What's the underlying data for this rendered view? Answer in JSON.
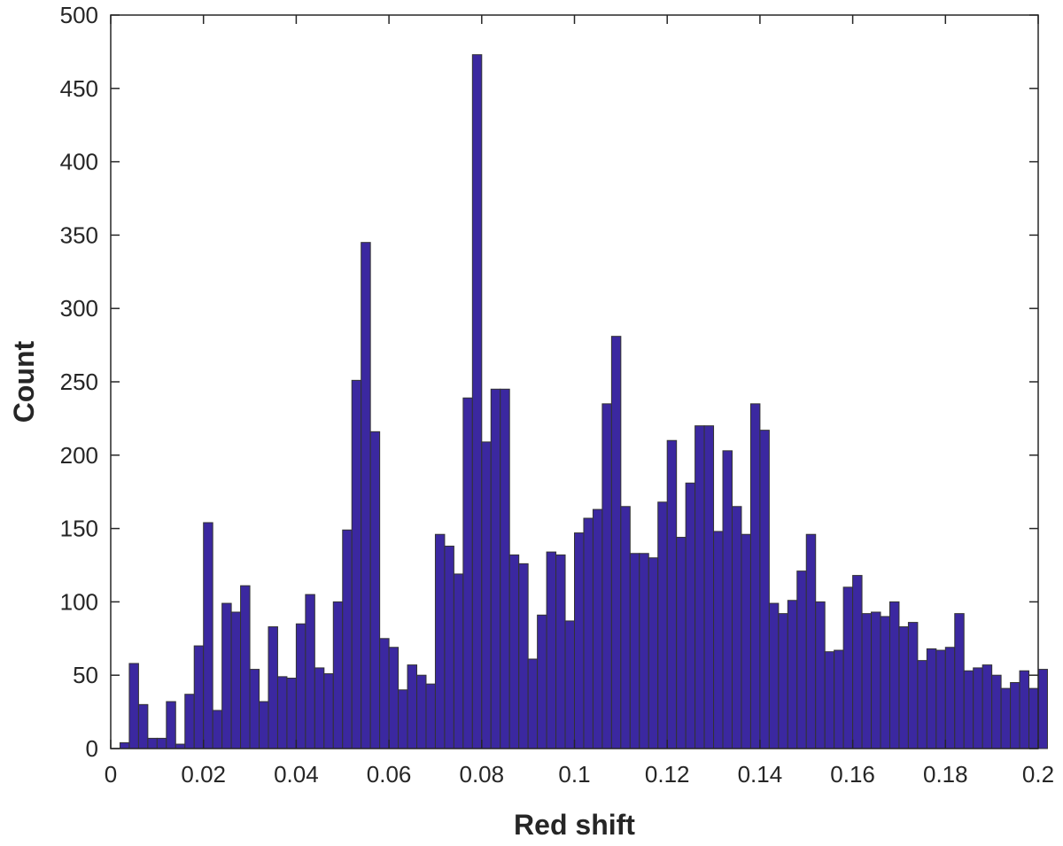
{
  "chart_data": {
    "type": "bar",
    "subtype": "histogram",
    "title": "",
    "xlabel": "Red shift",
    "ylabel": "Count",
    "xlim": [
      0,
      0.2
    ],
    "ylim": [
      0,
      500
    ],
    "grid": false,
    "bar_color": "#3b28a0",
    "edge_color": "#333333",
    "bin_width": 0.002,
    "bin_start": 0.002,
    "x_ticks": [
      0,
      0.02,
      0.04,
      0.06,
      0.08,
      0.1,
      0.12,
      0.14,
      0.16,
      0.18,
      0.2
    ],
    "x_tick_labels": [
      "0",
      "0.02",
      "0.04",
      "0.06",
      "0.08",
      "0.1",
      "0.12",
      "0.14",
      "0.16",
      "0.18",
      "0.2"
    ],
    "y_ticks": [
      0,
      50,
      100,
      150,
      200,
      250,
      300,
      350,
      400,
      450,
      500
    ],
    "y_tick_labels": [
      "0",
      "50",
      "100",
      "150",
      "200",
      "250",
      "300",
      "350",
      "400",
      "450",
      "500"
    ],
    "values": [
      4,
      58,
      30,
      7,
      7,
      32,
      3,
      37,
      70,
      154,
      26,
      99,
      93,
      111,
      54,
      32,
      83,
      49,
      48,
      85,
      105,
      55,
      51,
      100,
      149,
      251,
      345,
      216,
      75,
      69,
      40,
      57,
      50,
      44,
      146,
      138,
      119,
      239,
      473,
      209,
      245,
      245,
      132,
      126,
      61,
      91,
      134,
      132,
      87,
      147,
      157,
      163,
      235,
      281,
      165,
      133,
      133,
      130,
      168,
      210,
      144,
      181,
      220,
      220,
      148,
      203,
      165,
      146,
      235,
      217,
      99,
      92,
      101,
      121,
      146,
      100,
      66,
      67,
      110,
      118,
      92,
      93,
      90,
      100,
      83,
      86,
      60,
      68,
      67,
      69,
      92,
      53,
      55,
      57,
      50,
      41,
      45,
      53,
      41,
      54
    ]
  }
}
